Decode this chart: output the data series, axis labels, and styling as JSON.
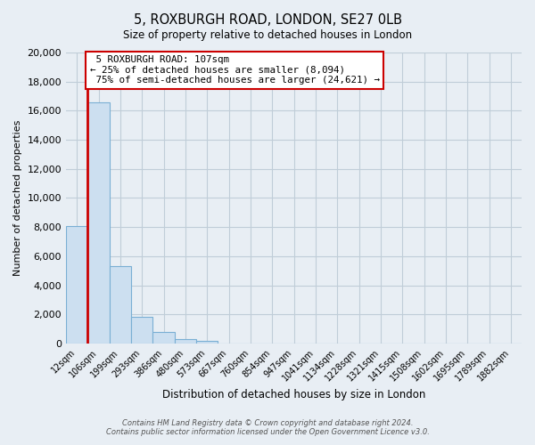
{
  "title": "5, ROXBURGH ROAD, LONDON, SE27 0LB",
  "subtitle": "Size of property relative to detached houses in London",
  "xlabel": "Distribution of detached houses by size in London",
  "ylabel": "Number of detached properties",
  "bar_labels": [
    "12sqm",
    "106sqm",
    "199sqm",
    "293sqm",
    "386sqm",
    "480sqm",
    "573sqm",
    "667sqm",
    "760sqm",
    "854sqm",
    "947sqm",
    "1041sqm",
    "1134sqm",
    "1228sqm",
    "1321sqm",
    "1415sqm",
    "1508sqm",
    "1602sqm",
    "1695sqm",
    "1789sqm",
    "1882sqm"
  ],
  "bar_values": [
    8094,
    16600,
    5300,
    1850,
    800,
    300,
    200,
    0,
    0,
    0,
    0,
    0,
    0,
    0,
    0,
    0,
    0,
    0,
    0,
    0,
    0
  ],
  "bar_color": "#ccdff0",
  "bar_edge_color": "#7aafd4",
  "property_label": "5 ROXBURGH ROAD: 107sqm",
  "pct_smaller": 25,
  "n_smaller": 8094,
  "pct_larger": 75,
  "n_larger": 24621,
  "vline_color": "#cc0000",
  "annotation_box_edge": "#cc0000",
  "ylim": [
    0,
    20000
  ],
  "yticks": [
    0,
    2000,
    4000,
    6000,
    8000,
    10000,
    12000,
    14000,
    16000,
    18000,
    20000
  ],
  "footer1": "Contains HM Land Registry data © Crown copyright and database right 2024.",
  "footer2": "Contains public sector information licensed under the Open Government Licence v3.0.",
  "fig_bg_color": "#e8eef4",
  "plot_bg_color": "#e8eef4",
  "grid_color": "#c0cdd8"
}
